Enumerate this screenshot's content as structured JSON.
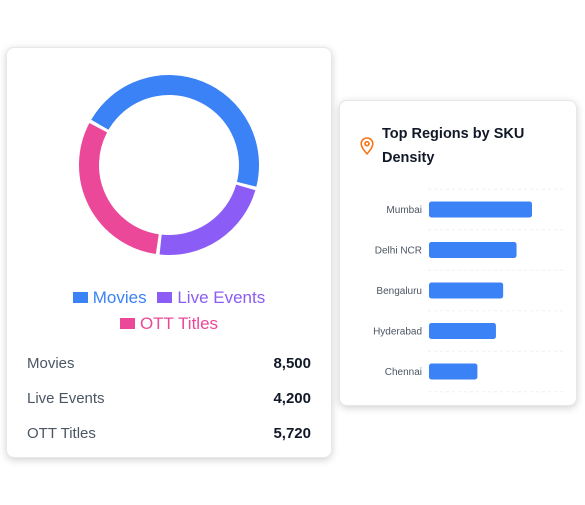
{
  "donut_card": {
    "chart_data": {
      "type": "pie",
      "categories": [
        "Movies",
        "Live Events",
        "OTT Titles"
      ],
      "values": [
        8500,
        4200,
        5720
      ],
      "colors": [
        "#3b82f6",
        "#8b5cf6",
        "#ec4899"
      ]
    },
    "legend": [
      {
        "label": "Movies",
        "color": "#3b82f6"
      },
      {
        "label": "Live Events",
        "color": "#8b5cf6"
      },
      {
        "label": "OTT Titles",
        "color": "#ec4899"
      }
    ],
    "stats": [
      {
        "label": "Movies",
        "value": "8,500"
      },
      {
        "label": "Live Events",
        "value": "4,200"
      },
      {
        "label": "OTT Titles",
        "value": "5,720"
      }
    ]
  },
  "regions_card": {
    "title": "Top Regions by SKU Density",
    "icon": "map-pin-icon",
    "icon_color": "#f97316",
    "chart_data": {
      "type": "bar",
      "orientation": "horizontal",
      "categories": [
        "Mumbai",
        "Delhi NCR",
        "Bengaluru",
        "Hyderabad",
        "Chennai"
      ],
      "values": [
        100,
        85,
        72,
        65,
        47
      ],
      "color": "#3b82f6"
    }
  }
}
